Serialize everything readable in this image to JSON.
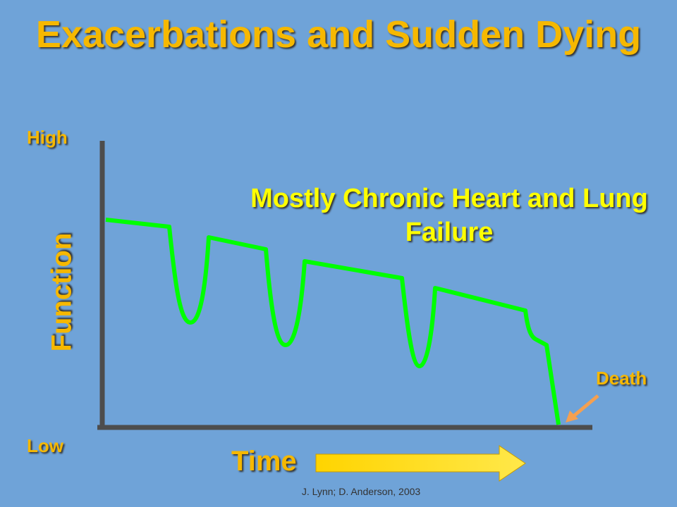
{
  "title": "Exacerbations and Sudden Dying",
  "y_axis": {
    "high": "High",
    "low": "Low",
    "label": "Function"
  },
  "x_axis": {
    "label": "Time"
  },
  "annotation": "Mostly Chronic Heart and Lung Failure",
  "death_label": "Death",
  "footer": "J. Lynn; D. Anderson, 2003"
}
